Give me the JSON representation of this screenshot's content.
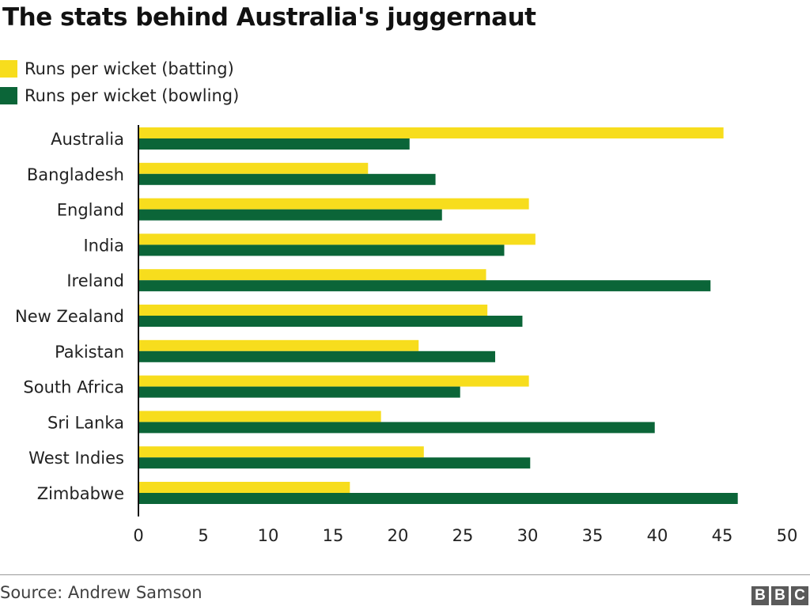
{
  "title": "The stats behind Australia's juggernaut",
  "legend": [
    {
      "label": "Runs per wicket (batting)",
      "color": "#f7dd1d"
    },
    {
      "label": "Runs per wicket (bowling)",
      "color": "#0b6538"
    }
  ],
  "footer": {
    "source": "Source: Andrew Samson",
    "logo_letters": [
      "B",
      "B",
      "C"
    ]
  },
  "chart_data": {
    "type": "bar",
    "orientation": "horizontal",
    "title": "The stats behind Australia's juggernaut",
    "categories": [
      "Australia",
      "Bangladesh",
      "England",
      "India",
      "Ireland",
      "New Zealand",
      "Pakistan",
      "South Africa",
      "Sri Lanka",
      "West Indies",
      "Zimbabwe"
    ],
    "series": [
      {
        "name": "Runs per wicket (batting)",
        "color": "#f7dd1d",
        "values": [
          45.1,
          17.7,
          30.1,
          30.6,
          26.8,
          26.9,
          21.6,
          30.1,
          18.7,
          22.0,
          16.3
        ]
      },
      {
        "name": "Runs per wicket (bowling)",
        "color": "#0b6538",
        "values": [
          20.9,
          22.9,
          23.4,
          28.2,
          44.1,
          29.6,
          27.5,
          24.8,
          39.8,
          30.2,
          46.2
        ]
      }
    ],
    "xlim": [
      0,
      50
    ],
    "xticks": [
      0,
      5,
      10,
      15,
      20,
      25,
      30,
      35,
      40,
      45,
      50
    ],
    "grid": false,
    "legend_position": "top-left"
  }
}
